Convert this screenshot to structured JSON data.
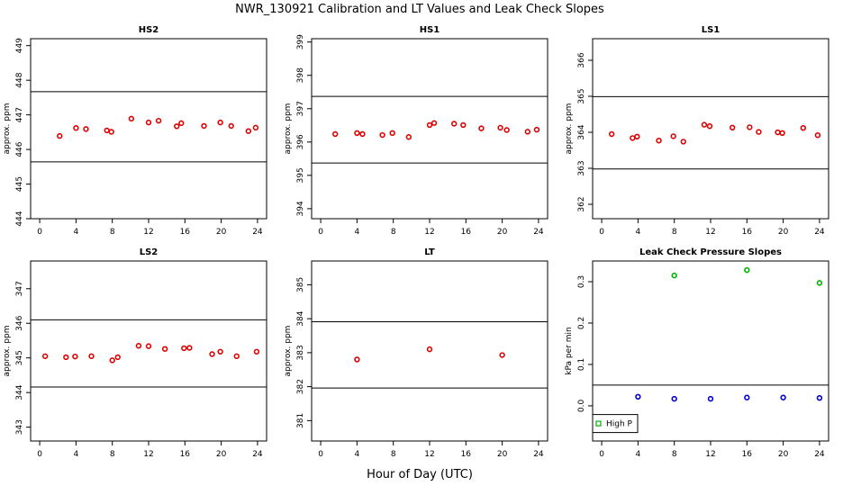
{
  "title": "NWR_130921  Calibration and LT Values and Leak Check Slopes",
  "xlabel": "Hour of Day (UTC)",
  "colors": {
    "points": "#e00000",
    "high_p": "#00b000",
    "low_p": "#0000d0",
    "axes": "#000000"
  },
  "chart_data": [
    {
      "type": "scatter",
      "title": "HS2",
      "ylabel": "approx. ppm",
      "xlim": [
        -1,
        25
      ],
      "ylim": [
        444,
        449.2
      ],
      "xticks": [
        0,
        4,
        8,
        12,
        16,
        20,
        24
      ],
      "yticks": [
        444,
        445,
        446,
        447,
        448,
        449
      ],
      "hlines": [
        447.67,
        445.64
      ],
      "series": [
        {
          "x": [
            2.2,
            4.0,
            5.1,
            7.4,
            7.9,
            10.1,
            12.0,
            13.1,
            15.1,
            15.6,
            18.1,
            19.9,
            21.1,
            23.0,
            23.8
          ],
          "y": [
            446.39,
            446.62,
            446.59,
            446.55,
            446.51,
            446.89,
            446.78,
            446.83,
            446.67,
            446.76,
            446.68,
            446.78,
            446.68,
            446.53,
            446.63
          ]
        }
      ]
    },
    {
      "type": "scatter",
      "title": "HS1",
      "ylabel": "approx. ppm",
      "xlim": [
        -1,
        25
      ],
      "ylim": [
        393.7,
        399.1
      ],
      "xticks": [
        0,
        4,
        8,
        12,
        16,
        20,
        24
      ],
      "yticks": [
        394,
        395,
        396,
        397,
        398,
        399
      ],
      "hlines": [
        397.37,
        395.37
      ],
      "series": [
        {
          "x": [
            1.6,
            4.0,
            4.6,
            6.8,
            7.9,
            9.7,
            12.0,
            12.5,
            14.7,
            15.7,
            17.7,
            19.8,
            20.5,
            22.8,
            23.8
          ],
          "y": [
            396.24,
            396.27,
            396.24,
            396.21,
            396.27,
            396.15,
            396.51,
            396.57,
            396.55,
            396.51,
            396.41,
            396.43,
            396.36,
            396.31,
            396.37
          ]
        }
      ]
    },
    {
      "type": "scatter",
      "title": "LS1",
      "ylabel": "approx. ppm",
      "xlim": [
        -1,
        25
      ],
      "ylim": [
        361.6,
        366.6
      ],
      "xticks": [
        0,
        4,
        8,
        12,
        16,
        20,
        24
      ],
      "yticks": [
        362,
        363,
        364,
        365,
        366
      ],
      "hlines": [
        364.99,
        362.98
      ],
      "series": [
        {
          "x": [
            1.1,
            3.4,
            3.9,
            6.3,
            7.9,
            9.0,
            11.3,
            11.9,
            14.4,
            16.3,
            17.3,
            19.4,
            19.9,
            22.2,
            23.8
          ],
          "y": [
            363.95,
            363.84,
            363.88,
            363.77,
            363.89,
            363.74,
            364.21,
            364.17,
            364.13,
            364.14,
            364.01,
            364.0,
            363.98,
            364.12,
            363.92
          ]
        }
      ]
    },
    {
      "type": "scatter",
      "title": "LS2",
      "ylabel": "approx. ppm",
      "xlim": [
        -1,
        25
      ],
      "ylim": [
        342.6,
        347.8
      ],
      "xticks": [
        0,
        4,
        8,
        12,
        16,
        20,
        24
      ],
      "yticks": [
        343,
        344,
        345,
        346,
        347
      ],
      "hlines": [
        346.1,
        344.16
      ],
      "series": [
        {
          "x": [
            0.6,
            2.9,
            3.9,
            5.7,
            8.0,
            8.6,
            10.9,
            12.0,
            13.8,
            15.9,
            16.5,
            19.0,
            19.9,
            21.7,
            23.9
          ],
          "y": [
            345.05,
            345.02,
            345.04,
            345.05,
            344.93,
            345.02,
            345.35,
            345.34,
            345.26,
            345.28,
            345.29,
            345.11,
            345.18,
            345.05,
            345.18
          ]
        }
      ]
    },
    {
      "type": "scatter",
      "title": "LT",
      "ylabel": "approx. ppm",
      "xlim": [
        -1,
        25
      ],
      "ylim": [
        380.4,
        385.7
      ],
      "xticks": [
        0,
        4,
        8,
        12,
        16,
        20,
        24
      ],
      "yticks": [
        381,
        382,
        383,
        384,
        385
      ],
      "hlines": [
        383.91,
        381.96
      ],
      "series": [
        {
          "x": [
            4.0,
            12.0,
            20.0
          ],
          "y": [
            382.8,
            383.1,
            382.93
          ]
        }
      ]
    },
    {
      "type": "scatter",
      "title": "Leak Check Pressure Slopes",
      "ylabel": "kPa per min",
      "xlim": [
        -1,
        25
      ],
      "ylim": [
        -0.085,
        0.35
      ],
      "xticks": [
        0,
        4,
        8,
        12,
        16,
        20,
        24
      ],
      "yticks": [
        0.0,
        0.1,
        0.2,
        0.3
      ],
      "hlines": [
        0.05
      ],
      "legend": {
        "entries": [
          "High P"
        ],
        "position": "bottom-left"
      },
      "series": [
        {
          "name": "High P",
          "x": [
            8.0,
            16.0,
            24.0
          ],
          "y": [
            0.315,
            0.328,
            0.297
          ]
        },
        {
          "x": [
            4.0,
            8.0,
            12.0,
            16.0,
            20.0,
            24.0
          ],
          "y": [
            0.022,
            0.017,
            0.017,
            0.02,
            0.02,
            0.019
          ]
        }
      ]
    }
  ]
}
